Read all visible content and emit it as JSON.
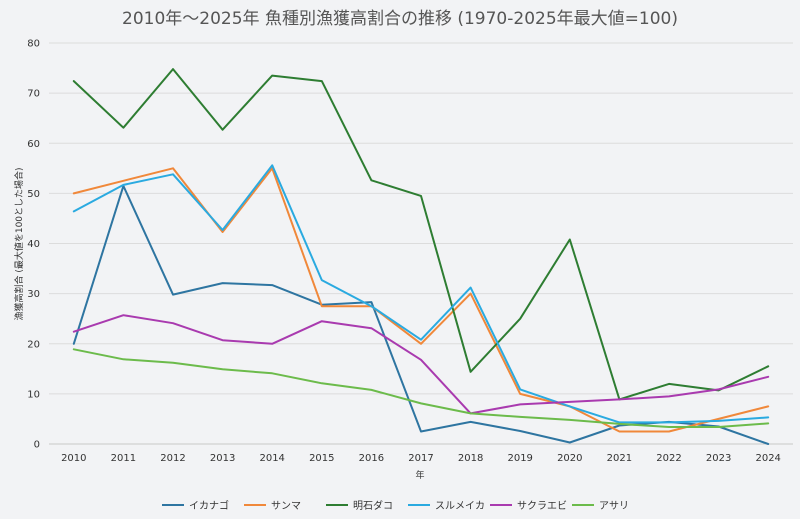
{
  "chart_data": {
    "type": "line",
    "title": "2010年～2025年 魚種別漁獲高割合の推移 (1970-2025年最大値=100)",
    "xlabel": "年",
    "ylabel": "漁獲高割合 (最大値を100とした場合)",
    "ylim": [
      0,
      80
    ],
    "yticks": [
      0,
      10,
      20,
      30,
      40,
      50,
      60,
      70,
      80
    ],
    "grid": true,
    "legend_position": "bottom",
    "categories": [
      "2010",
      "2011",
      "2012",
      "2013",
      "2014",
      "2015",
      "2016",
      "2017",
      "2018",
      "2019",
      "2020",
      "2021",
      "2022",
      "2023",
      "2024"
    ],
    "series": [
      {
        "name": "イカナゴ",
        "color": "#2e75a1",
        "values": [
          20,
          51.5,
          29.8,
          32.1,
          31.7,
          27.8,
          28.3,
          2.5,
          4.4,
          2.6,
          0.3,
          3.7,
          4.4,
          3.5,
          0
        ]
      },
      {
        "name": "サンマ",
        "color": "#f0883a",
        "values": [
          50,
          52.5,
          55,
          42.3,
          55,
          27.5,
          27.5,
          20,
          30,
          10,
          7.5,
          2.5,
          2.5,
          5,
          7.5
        ]
      },
      {
        "name": "明石ダコ",
        "color": "#2e7d32",
        "values": [
          72.4,
          63.1,
          74.8,
          62.7,
          73.5,
          72.4,
          52.6,
          49.5,
          14.4,
          25,
          40.8,
          8.9,
          12,
          10.7,
          15.5
        ]
      },
      {
        "name": "スルメイカ",
        "color": "#2aaae0",
        "values": [
          46.4,
          51.7,
          53.8,
          42.7,
          55.6,
          32.7,
          27.5,
          20.8,
          31.2,
          10.9,
          7.5,
          4.3,
          4.3,
          4.6,
          5.3
        ]
      },
      {
        "name": "サクラエビ",
        "color": "#a93aaf",
        "values": [
          22.4,
          25.7,
          24.1,
          20.7,
          20,
          24.5,
          23.1,
          16.8,
          6.1,
          7.9,
          8.4,
          8.9,
          9.5,
          10.9,
          13.4
        ]
      },
      {
        "name": "アサリ",
        "color": "#6cbb4b",
        "values": [
          18.9,
          16.9,
          16.2,
          14.9,
          14.1,
          12.1,
          10.8,
          8.1,
          6.1,
          5.4,
          4.8,
          4,
          3.4,
          3.4,
          4.1
        ]
      }
    ]
  }
}
